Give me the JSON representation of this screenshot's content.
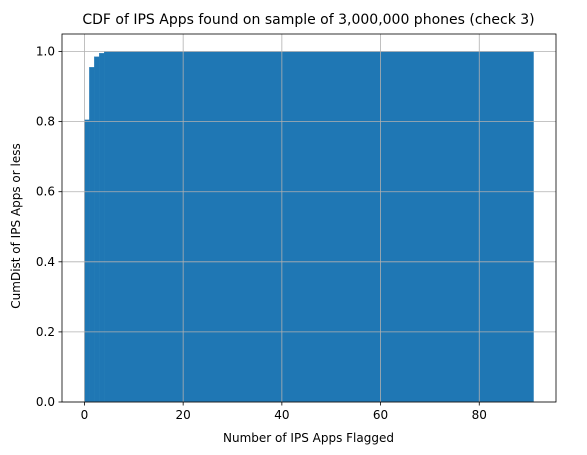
{
  "chart_data": {
    "type": "bar",
    "title": "CDF of IPS Apps found on sample of 3,000,000 phones (check 3)",
    "xlabel": "Number of IPS Apps Flagged",
    "ylabel": "CumDist of IPS Apps or less",
    "xlim": [
      -4.55,
      95.55
    ],
    "ylim": [
      0,
      1.05
    ],
    "xticks": [
      0,
      20,
      40,
      60,
      80
    ],
    "yticks": [
      0.0,
      0.2,
      0.4,
      0.6,
      0.8,
      1.0
    ],
    "xtick_labels": [
      "0",
      "20",
      "40",
      "60",
      "80"
    ],
    "ytick_labels": [
      "0.0",
      "0.2",
      "0.4",
      "0.6",
      "0.8",
      "1.0"
    ],
    "grid": true,
    "bar_color": "#1f77b4",
    "bins": [
      {
        "x0": 0,
        "x1": 1,
        "value": 0.805
      },
      {
        "x0": 1,
        "x1": 2,
        "value": 0.955
      },
      {
        "x0": 2,
        "x1": 3,
        "value": 0.985
      },
      {
        "x0": 3,
        "x1": 4,
        "value": 0.995
      },
      {
        "x0": 4,
        "x1": 91,
        "value": 1.0
      }
    ]
  }
}
